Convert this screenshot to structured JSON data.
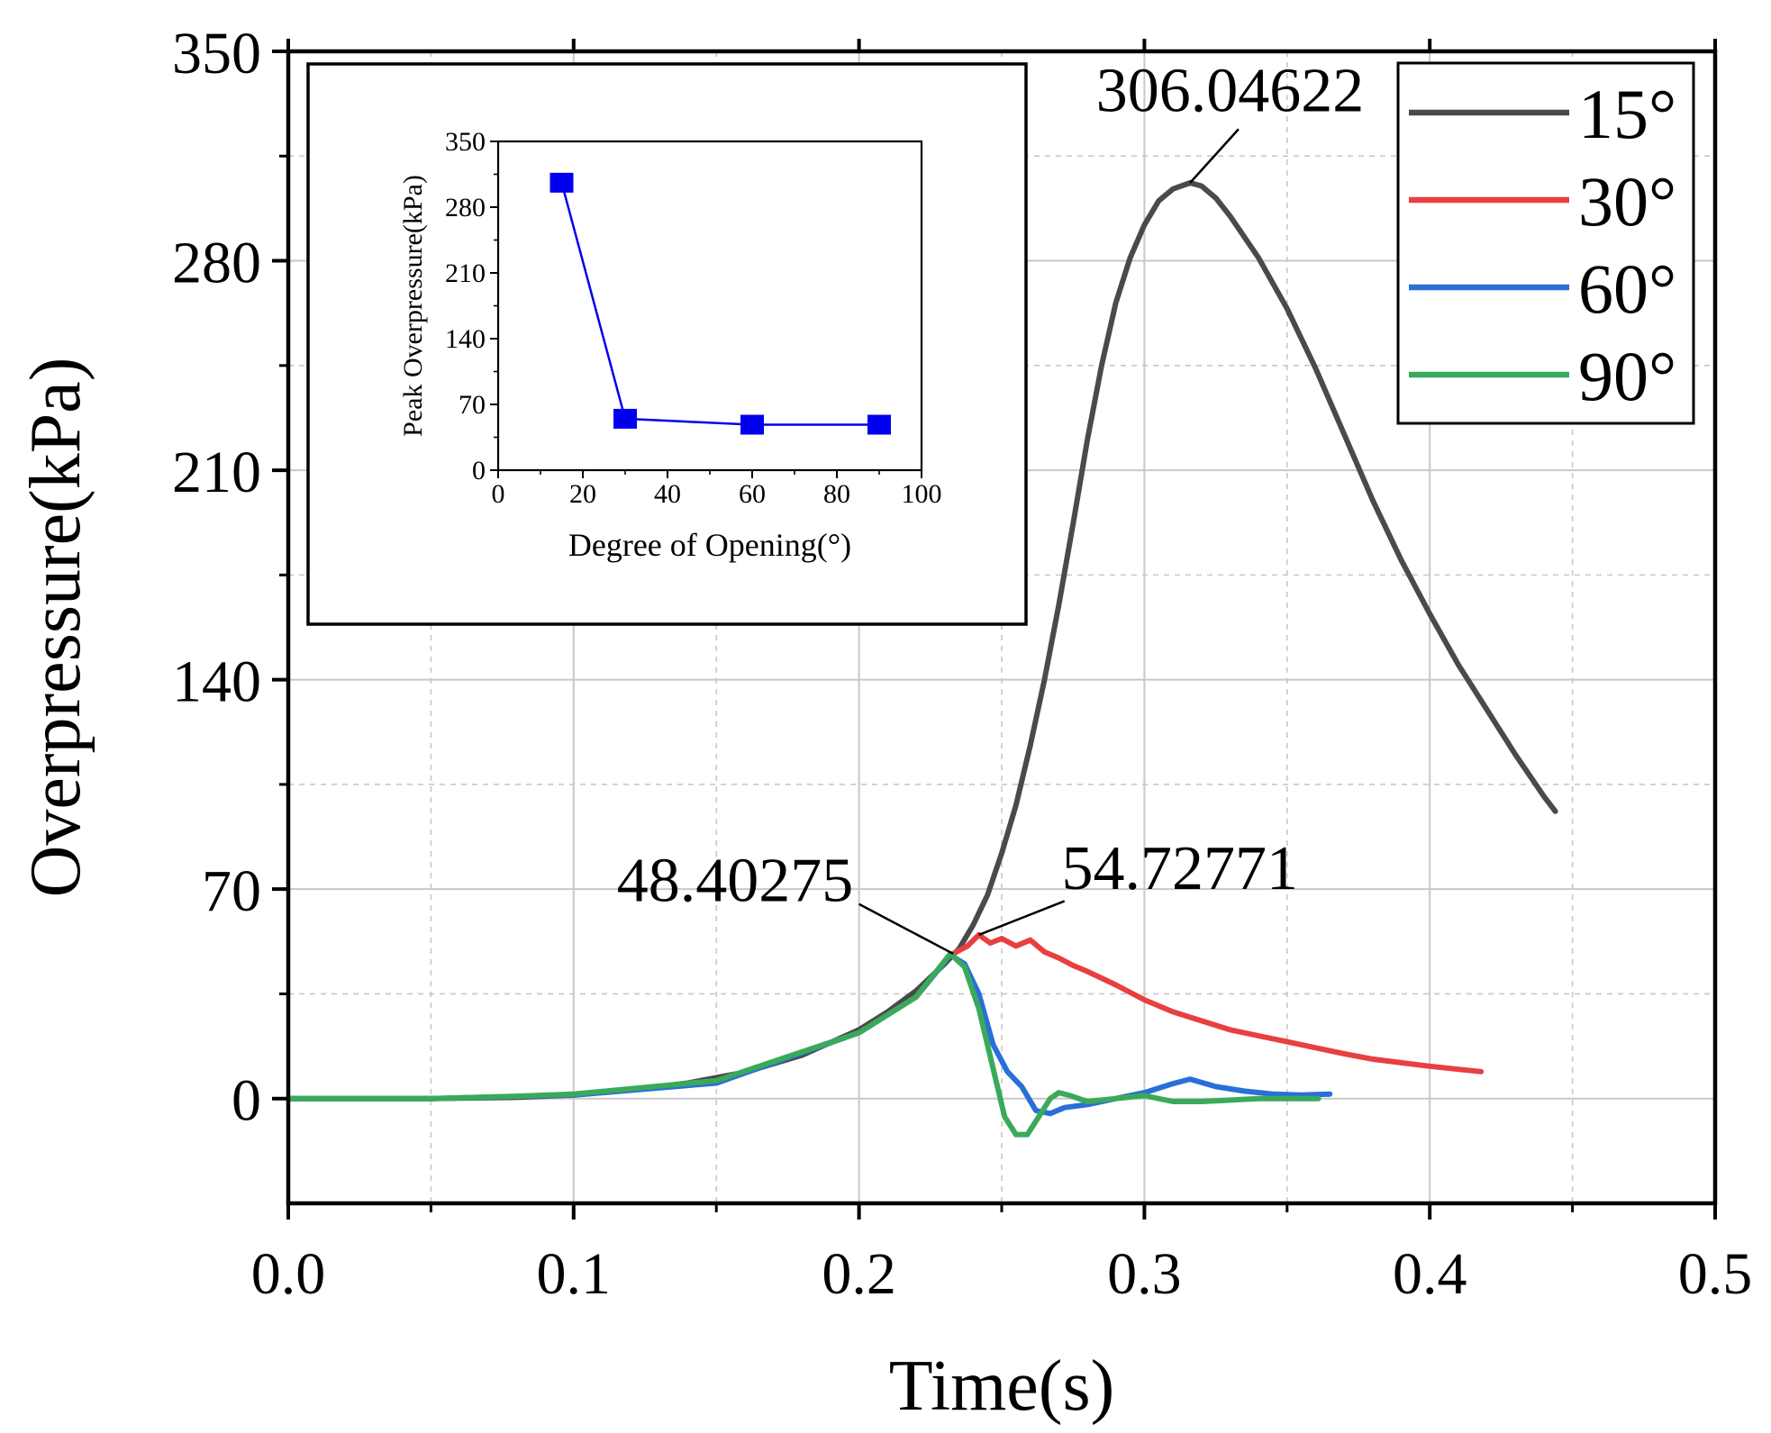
{
  "chart_data": [
    {
      "type": "line",
      "xlabel": "Time(s)",
      "ylabel": "Overpressure(kPa)",
      "xlim": [
        0,
        0.5
      ],
      "ylim": [
        -35,
        350
      ],
      "xticks": [
        0,
        0.1,
        0.2,
        0.3,
        0.4,
        0.5
      ],
      "xtick_labels": [
        "0.0",
        "0.1",
        "0.2",
        "0.3",
        "0.4",
        "0.5"
      ],
      "yticks": [
        0,
        70,
        140,
        210,
        280,
        350
      ],
      "ytick_labels": [
        "0",
        "70",
        "140",
        "210",
        "280",
        "350"
      ],
      "grid": true,
      "legend_position": "top-right",
      "series": [
        {
          "name": "15°",
          "color": "#4a4a4a",
          "points": [
            [
              0,
              0
            ],
            [
              0.05,
              0
            ],
            [
              0.08,
              0.4
            ],
            [
              0.1,
              1.2
            ],
            [
              0.12,
              2.8
            ],
            [
              0.14,
              5.2
            ],
            [
              0.16,
              8.8
            ],
            [
              0.18,
              14.5
            ],
            [
              0.2,
              23
            ],
            [
              0.21,
              29
            ],
            [
              0.22,
              36
            ],
            [
              0.23,
              45
            ],
            [
              0.235,
              50
            ],
            [
              0.24,
              58
            ],
            [
              0.245,
              68
            ],
            [
              0.25,
              82
            ],
            [
              0.255,
              98
            ],
            [
              0.26,
              118
            ],
            [
              0.265,
              140
            ],
            [
              0.27,
              165
            ],
            [
              0.275,
              192
            ],
            [
              0.28,
              220
            ],
            [
              0.285,
              245
            ],
            [
              0.29,
              266
            ],
            [
              0.295,
              281
            ],
            [
              0.3,
              292
            ],
            [
              0.305,
              300
            ],
            [
              0.31,
              304
            ],
            [
              0.316,
              306.05
            ],
            [
              0.32,
              305
            ],
            [
              0.325,
              301
            ],
            [
              0.33,
              295
            ],
            [
              0.34,
              281
            ],
            [
              0.35,
              264
            ],
            [
              0.36,
              244
            ],
            [
              0.37,
              222
            ],
            [
              0.38,
              200
            ],
            [
              0.39,
              180
            ],
            [
              0.4,
              162
            ],
            [
              0.41,
              145
            ],
            [
              0.42,
              130
            ],
            [
              0.43,
              115
            ],
            [
              0.44,
              101
            ],
            [
              0.444,
              96
            ]
          ]
        },
        {
          "name": "30°",
          "color": "#e84040",
          "points": [
            [
              0.233,
              48.4
            ],
            [
              0.238,
              51
            ],
            [
              0.242,
              54.73
            ],
            [
              0.246,
              52
            ],
            [
              0.25,
              53.5
            ],
            [
              0.255,
              51
            ],
            [
              0.26,
              53
            ],
            [
              0.265,
              49
            ],
            [
              0.27,
              47
            ],
            [
              0.275,
              44.5
            ],
            [
              0.28,
              42.5
            ],
            [
              0.29,
              38
            ],
            [
              0.3,
              33
            ],
            [
              0.31,
              29
            ],
            [
              0.32,
              26
            ],
            [
              0.33,
              23
            ],
            [
              0.34,
              21
            ],
            [
              0.35,
              19
            ],
            [
              0.36,
              17
            ],
            [
              0.37,
              15
            ],
            [
              0.38,
              13.2
            ],
            [
              0.39,
              12
            ],
            [
              0.4,
              10.8
            ],
            [
              0.41,
              9.8
            ],
            [
              0.418,
              9
            ]
          ]
        },
        {
          "name": "60°",
          "color": "#2a6fd8",
          "points": [
            [
              0,
              0
            ],
            [
              0.05,
              0
            ],
            [
              0.1,
              1.2
            ],
            [
              0.15,
              5.2
            ],
            [
              0.2,
              22
            ],
            [
              0.22,
              34
            ],
            [
              0.232,
              48
            ],
            [
              0.237,
              45
            ],
            [
              0.242,
              35
            ],
            [
              0.247,
              18
            ],
            [
              0.252,
              9
            ],
            [
              0.257,
              4
            ],
            [
              0.262,
              -4
            ],
            [
              0.267,
              -5
            ],
            [
              0.272,
              -3
            ],
            [
              0.28,
              -2
            ],
            [
              0.29,
              0
            ],
            [
              0.3,
              2
            ],
            [
              0.31,
              5
            ],
            [
              0.316,
              6.5
            ],
            [
              0.325,
              4
            ],
            [
              0.335,
              2.5
            ],
            [
              0.345,
              1.5
            ],
            [
              0.355,
              1.2
            ],
            [
              0.365,
              1.5
            ]
          ]
        },
        {
          "name": "90°",
          "color": "#3aaa5a",
          "points": [
            [
              0,
              0
            ],
            [
              0.05,
              0
            ],
            [
              0.08,
              0.8
            ],
            [
              0.1,
              1.5
            ],
            [
              0.15,
              6
            ],
            [
              0.2,
              22
            ],
            [
              0.22,
              34
            ],
            [
              0.232,
              48.4
            ],
            [
              0.237,
              44
            ],
            [
              0.242,
              30
            ],
            [
              0.247,
              10
            ],
            [
              0.251,
              -6
            ],
            [
              0.255,
              -12
            ],
            [
              0.259,
              -12
            ],
            [
              0.263,
              -6
            ],
            [
              0.267,
              0
            ],
            [
              0.27,
              2
            ],
            [
              0.274,
              1
            ],
            [
              0.28,
              -1
            ],
            [
              0.29,
              0
            ],
            [
              0.3,
              1
            ],
            [
              0.31,
              -1
            ],
            [
              0.32,
              -1
            ],
            [
              0.34,
              0
            ],
            [
              0.361,
              0
            ]
          ]
        }
      ],
      "annotations": [
        {
          "text": "306.04622",
          "x": 0.316,
          "y": 306.05
        },
        {
          "text": "54.72771",
          "x": 0.242,
          "y": 54.73
        },
        {
          "text": "48.40275",
          "x": 0.233,
          "y": 48.4
        }
      ]
    },
    {
      "type": "line",
      "role": "inset",
      "xlabel": "Degree of Opening(°)",
      "ylabel": "Peak Overpressure(kPa)",
      "xlim": [
        0,
        100
      ],
      "ylim": [
        0,
        350
      ],
      "xticks": [
        0,
        20,
        40,
        60,
        80,
        100
      ],
      "xtick_labels": [
        "0",
        "20",
        "40",
        "60",
        "80",
        "100"
      ],
      "yticks": [
        0,
        70,
        140,
        210,
        280,
        350
      ],
      "ytick_labels": [
        "0",
        "70",
        "140",
        "210",
        "280",
        "350"
      ],
      "grid": false,
      "series": [
        {
          "name": "Peak Overpressure",
          "color": "#0000ee",
          "marker": "square",
          "x": [
            15,
            30,
            60,
            90
          ],
          "y": [
            306.04622,
            54.72771,
            48.40275,
            48.40275
          ]
        }
      ]
    }
  ]
}
